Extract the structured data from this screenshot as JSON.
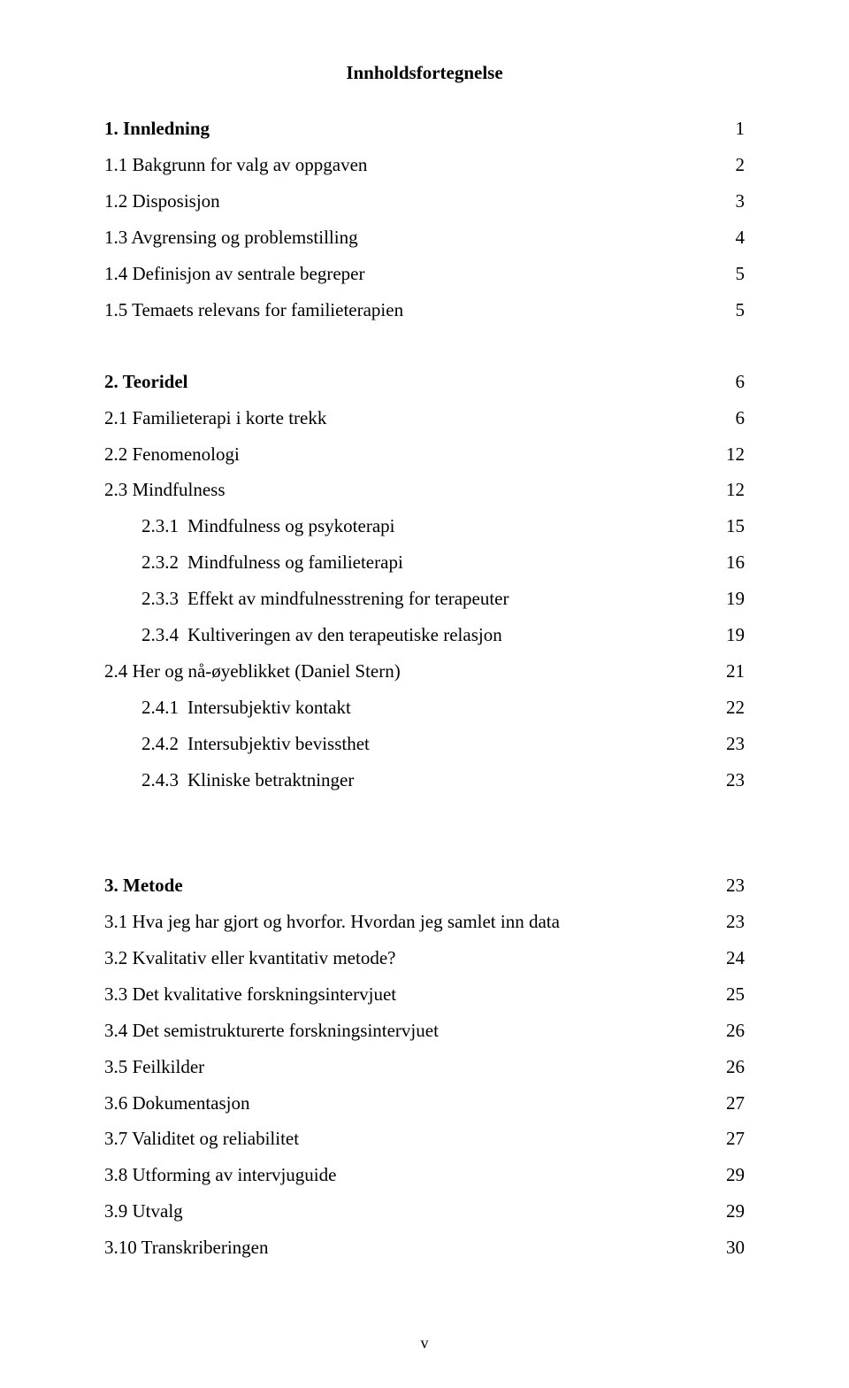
{
  "title": "Innholdsfortegnelse",
  "footer": "v",
  "toc": [
    {
      "label": "1. Innledning",
      "page": "1",
      "bold": true,
      "indent": 0,
      "leader": "ell"
    },
    {
      "label": "1.1 Bakgrunn for valg av oppgaven",
      "page": "2",
      "bold": false,
      "indent": 0,
      "leader": "dots"
    },
    {
      "label": "1.2 Disposisjon",
      "page": "3",
      "bold": false,
      "indent": 0,
      "leader": "dots"
    },
    {
      "label": "1.3 Avgrensing og problemstilling",
      "page": "4",
      "bold": false,
      "indent": 0,
      "leader": "dots"
    },
    {
      "label": "1.4 Definisjon av sentrale begreper",
      "page": "5",
      "bold": false,
      "indent": 0,
      "leader": "ddots"
    },
    {
      "label": "1.5 Temaets relevans for familieterapien",
      "page": "5",
      "bold": false,
      "indent": 0,
      "leader": "dots"
    },
    {
      "gap": "lg"
    },
    {
      "label": "2. Teoridel",
      "page": "6",
      "bold": true,
      "indent": 0,
      "leader": "ell"
    },
    {
      "label": "2.1 Familieterapi i korte trekk",
      "page": "6",
      "bold": false,
      "indent": 0,
      "leader": "dots"
    },
    {
      "label": "2.2 Fenomenologi",
      "page": "12",
      "bold": false,
      "indent": 0,
      "leader": "ddots"
    },
    {
      "label": "2.3 Mindfulness",
      "page": "12",
      "bold": false,
      "indent": 0,
      "leader": "dots"
    },
    {
      "num": "2.3.1",
      "label": "Mindfulness og psykoterapi",
      "page": "15",
      "bold": false,
      "indent": 1,
      "leader": "dots"
    },
    {
      "num": "2.3.2",
      "label": "Mindfulness og familieterapi",
      "page": "16",
      "bold": false,
      "indent": 1,
      "leader": "ell"
    },
    {
      "num": "2.3.3",
      "label": "Effekt av mindfulnesstrening for terapeuter",
      "page": "19",
      "bold": false,
      "indent": 1,
      "leader": "ell"
    },
    {
      "num": "2.3.4",
      "label": "Kultiveringen av den terapeutiske relasjon",
      "page": "19",
      "bold": false,
      "indent": 1,
      "leader": "ell"
    },
    {
      "label": "2.4 Her og nå-øyeblikket (Daniel Stern)",
      "page": "21",
      "bold": false,
      "indent": 0,
      "leader": "dots"
    },
    {
      "num": "2.4.1",
      "label": "Intersubjektiv kontakt",
      "page": "22",
      "bold": false,
      "indent": 1,
      "leader": "dots"
    },
    {
      "num": "2.4.2",
      "label": "Intersubjektiv bevissthet",
      "page": "23",
      "bold": false,
      "indent": 1,
      "leader": "ell"
    },
    {
      "num": "2.4.3",
      "label": "Kliniske betraktninger",
      "page": "23",
      "bold": false,
      "indent": 1,
      "leader": "ell"
    },
    {
      "gap": "xl"
    },
    {
      "label": "3. Metode",
      "page": "23",
      "bold": true,
      "indent": 0,
      "leader": "ell"
    },
    {
      "label": "3.1 Hva jeg har gjort og hvorfor. Hvordan jeg samlet inn data",
      "page": "23",
      "bold": false,
      "indent": 0,
      "leader": "dots"
    },
    {
      "label": "3.2 Kvalitativ eller kvantitativ metode?",
      "page": "24",
      "bold": false,
      "indent": 0,
      "leader": "ell"
    },
    {
      "label": "3.3 Det kvalitative forskningsintervjuet",
      "page": "25",
      "bold": false,
      "indent": 0,
      "leader": "dots"
    },
    {
      "label": "3.4 Det semistrukturerte forskningsintervjuet",
      "page": "26",
      "bold": false,
      "indent": 0,
      "leader": "dots"
    },
    {
      "label": "3.5 Feilkilder",
      "page": "26",
      "bold": false,
      "indent": 0,
      "leader": "ell"
    },
    {
      "label": "3.6 Dokumentasjon",
      "page": "27",
      "bold": false,
      "indent": 0,
      "leader": "ddots"
    },
    {
      "label": "3.7 Validitet og reliabilitet",
      "page": "27",
      "bold": false,
      "indent": 0,
      "leader": "dots"
    },
    {
      "label": "3.8 Utforming av intervjuguide",
      "page": "29",
      "bold": false,
      "indent": 0,
      "leader": "dots"
    },
    {
      "label": "3.9 Utvalg",
      "page": "29",
      "bold": false,
      "indent": 0,
      "leader": "ddots"
    },
    {
      "label": "3.10 Transkriberingen",
      "page": "30",
      "bold": false,
      "indent": 0,
      "leader": "dots"
    }
  ]
}
